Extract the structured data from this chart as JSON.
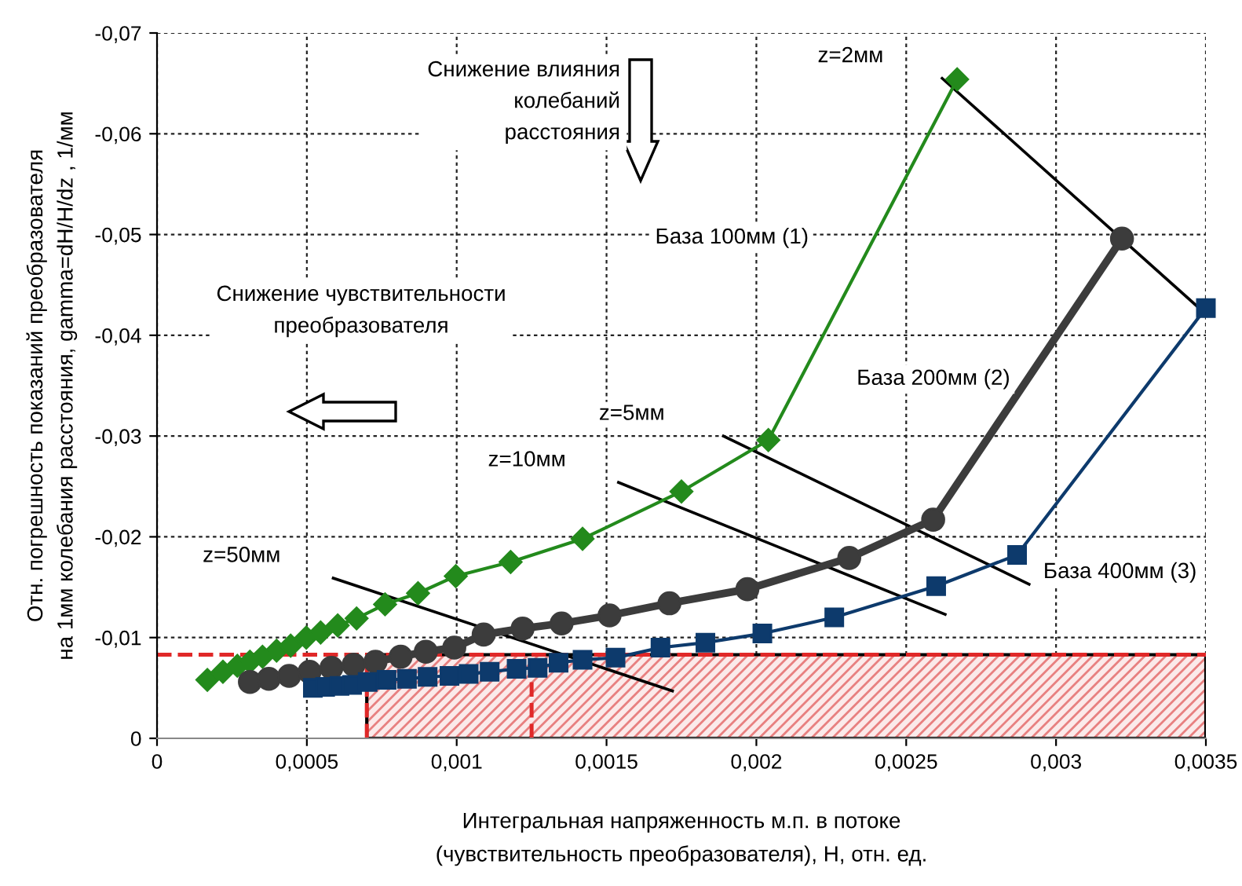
{
  "chart_data": {
    "type": "line",
    "xlabel": "Интегральная напряженность м.п. в потоке\n(чувствительность преобразователя), H, отн. ед.",
    "ylabel": "Отн. погрешность показаний преобразователя\nна 1мм колебания расстояния, gamma=dH/H/dz , 1/мм",
    "xlim": [
      0,
      0.0035
    ],
    "ylim": [
      0,
      -0.07
    ],
    "xticks": [
      0,
      {
        "value": 0.0005,
        "label": "0,0005"
      },
      {
        "value": 0.001,
        "label": "0,001"
      },
      {
        "value": 0.0015,
        "label": "0,0015"
      },
      {
        "value": 0.002,
        "label": "0,002"
      },
      {
        "value": 0.0025,
        "label": "0,0025"
      },
      {
        "value": 0.003,
        "label": "0,003"
      },
      {
        "value": 0.0035,
        "label": "0,0035"
      }
    ],
    "yticks": [
      0,
      {
        "value": -0.01,
        "label": "-0,01"
      },
      {
        "value": -0.02,
        "label": "-0,02"
      },
      {
        "value": -0.03,
        "label": "-0,03"
      },
      {
        "value": -0.04,
        "label": "-0,04"
      },
      {
        "value": -0.05,
        "label": "-0,05"
      },
      {
        "value": -0.06,
        "label": "-0,06"
      },
      {
        "value": -0.07,
        "label": "-0,07"
      }
    ],
    "grid": true,
    "series": [
      {
        "name": "База 100мм (1)",
        "color": "#238a1c",
        "marker": "diamond",
        "x": [
          0.000168,
          0.00022,
          0.000268,
          0.00031,
          0.000352,
          0.000399,
          0.000446,
          0.000498,
          0.000546,
          0.000603,
          0.000666,
          0.000761,
          0.000871,
          0.000997,
          0.00118,
          0.00142,
          0.00175,
          0.00204,
          0.00267
        ],
        "values": [
          -0.0058,
          -0.0066,
          -0.0072,
          -0.0076,
          -0.0081,
          -0.0087,
          -0.0092,
          -0.01,
          -0.0105,
          -0.0112,
          -0.0119,
          -0.0133,
          -0.0144,
          -0.0161,
          -0.0175,
          -0.0198,
          -0.0245,
          -0.0296,
          -0.0654
        ]
      },
      {
        "name": "База 200мм (2)",
        "color": "#3c3c3c",
        "marker": "circle",
        "x": [
          0.00031,
          0.000373,
          0.000441,
          0.000509,
          0.000582,
          0.000656,
          0.000729,
          0.000813,
          0.000897,
          0.000992,
          0.00109,
          0.00122,
          0.00135,
          0.00151,
          0.00171,
          0.00197,
          0.00231,
          0.00259,
          0.00322
        ],
        "values": [
          -0.0056,
          -0.0059,
          -0.0062,
          -0.0066,
          -0.007,
          -0.0073,
          -0.0076,
          -0.0081,
          -0.0086,
          -0.009,
          -0.0103,
          -0.0109,
          -0.0114,
          -0.0122,
          -0.0134,
          -0.0148,
          -0.0179,
          -0.0217,
          -0.0496
        ]
      },
      {
        "name": "База 400мм (3)",
        "color": "#0d3a6c",
        "marker": "square",
        "x": [
          0.00052,
          0.000561,
          0.000609,
          0.000651,
          0.000703,
          0.000766,
          0.000834,
          0.000903,
          0.000976,
          0.00104,
          0.00111,
          0.0012,
          0.00127,
          0.00134,
          0.00142,
          0.00153,
          0.00168,
          0.00183,
          0.00202,
          0.00226,
          0.0026,
          0.00287,
          0.0035
        ],
        "values": [
          -0.005,
          -0.0051,
          -0.0052,
          -0.0053,
          -0.0056,
          -0.0058,
          -0.0059,
          -0.0061,
          -0.0062,
          -0.0064,
          -0.0066,
          -0.0069,
          -0.007,
          -0.0075,
          -0.0078,
          -0.008,
          -0.009,
          -0.0095,
          -0.0104,
          -0.012,
          -0.0151,
          -0.0182,
          -0.0427
        ]
      },
      {
        "name": "z=2мм",
        "color": "#000000",
        "marker": "none",
        "x": [
          0.00262,
          0.0035
        ],
        "values": [
          -0.0655,
          -0.0421
        ]
      },
      {
        "name": "z=5мм",
        "color": "#000000",
        "marker": "none",
        "x": [
          0.00189,
          0.00291
        ],
        "values": [
          -0.03,
          -0.0153
        ]
      },
      {
        "name": "z=10мм",
        "color": "#000000",
        "marker": "none",
        "x": [
          0.00154,
          0.00263
        ],
        "values": [
          -0.0254,
          -0.0123
        ]
      },
      {
        "name": "z=50мм",
        "color": "#000000",
        "marker": "none",
        "x": [
          0.000588,
          0.00172
        ],
        "values": [
          -0.0159,
          -0.0047
        ]
      }
    ],
    "ref_lines": [
      {
        "axis": "y",
        "value": -0.0083,
        "color": "#e02828",
        "line_style": "dashed"
      },
      {
        "axis": "x",
        "value": 0.0007,
        "color": "#e02828",
        "line_style": "dashed"
      },
      {
        "axis": "x",
        "value": 0.00125,
        "color": "#e02828",
        "line_style": "dashed"
      }
    ],
    "bands": [
      {
        "axis": "x",
        "from": 0.0007,
        "to": 0.0035,
        "color": "#e88080"
      }
    ],
    "annotations": [
      "Снижение влияния\nколебаний\nрасстояния",
      "Снижение чувствительности\nпреобразователя"
    ]
  }
}
